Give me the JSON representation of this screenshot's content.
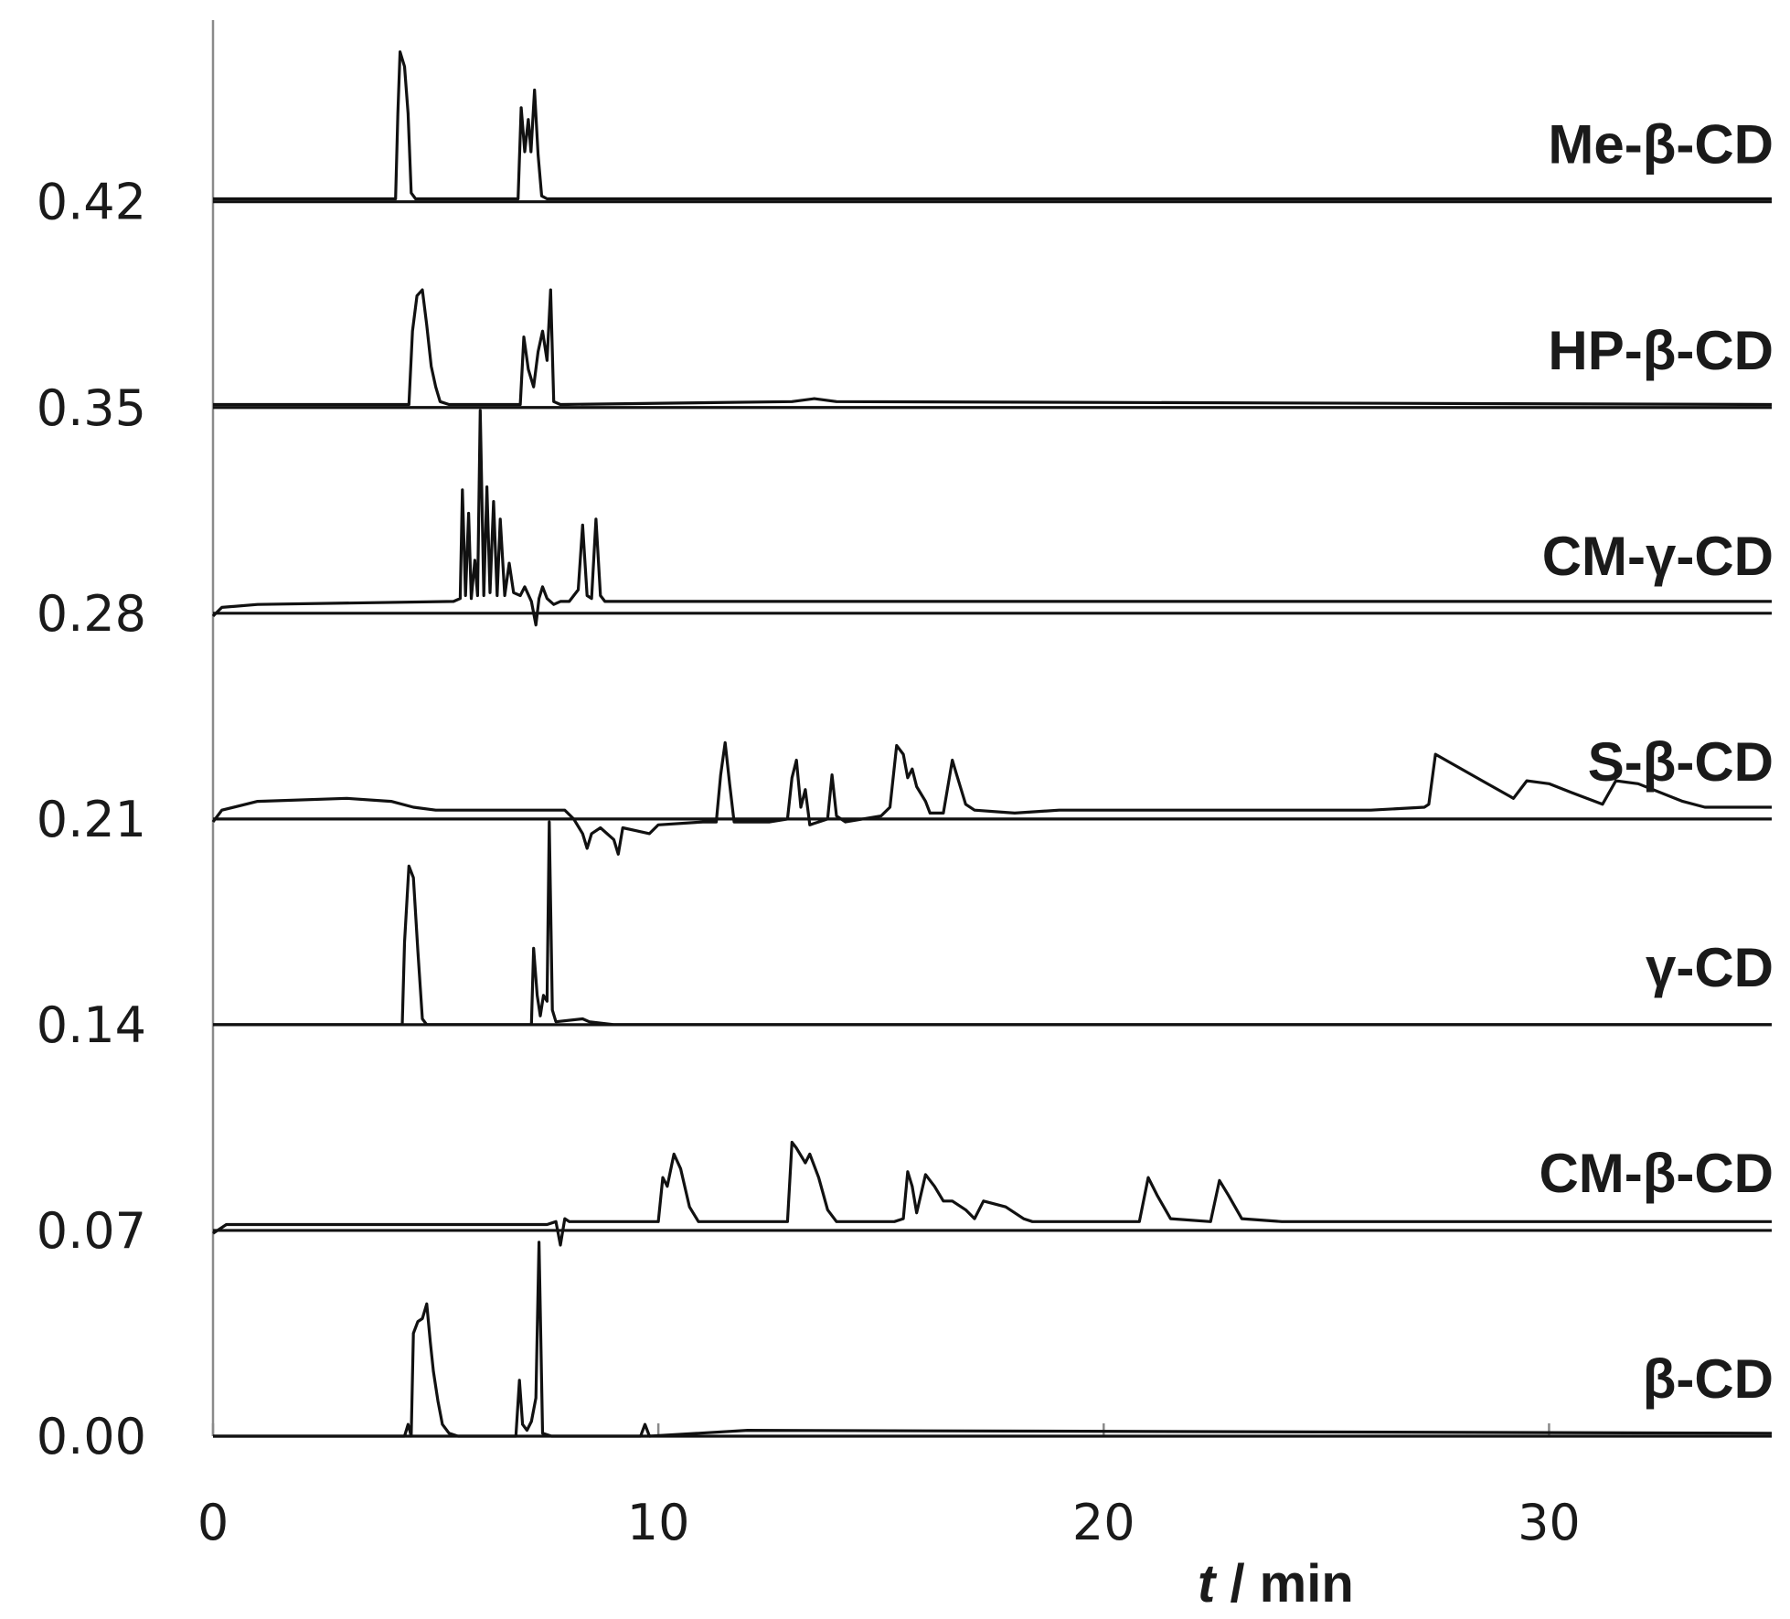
{
  "chart_data": {
    "type": "line",
    "layout": "stacked-offset",
    "xlabel_italic": "t",
    "xlabel_rest": " / min",
    "xlim": [
      0,
      35
    ],
    "xticks": [
      0,
      10,
      20,
      30
    ],
    "ylim": [
      0,
      0.476
    ],
    "yticks": [
      "0.00",
      "0.07",
      "0.14",
      "0.21",
      "0.28",
      "0.35",
      "0.42"
    ],
    "grid": false,
    "series": [
      {
        "name": "Me-β-CD",
        "baseline": 0.42,
        "points": [
          [
            0,
            0.421
          ],
          [
            4.1,
            0.421
          ],
          [
            4.15,
            0.45
          ],
          [
            4.2,
            0.471
          ],
          [
            4.3,
            0.466
          ],
          [
            4.38,
            0.45
          ],
          [
            4.45,
            0.423
          ],
          [
            4.55,
            0.421
          ],
          [
            6.85,
            0.421
          ],
          [
            6.92,
            0.452
          ],
          [
            7.0,
            0.437
          ],
          [
            7.08,
            0.448
          ],
          [
            7.14,
            0.437
          ],
          [
            7.22,
            0.458
          ],
          [
            7.3,
            0.436
          ],
          [
            7.38,
            0.422
          ],
          [
            7.5,
            0.421
          ],
          [
            13,
            0.421
          ],
          [
            35,
            0.421
          ]
        ]
      },
      {
        "name": "HP-β-CD",
        "baseline": 0.35,
        "points": [
          [
            0,
            0.351
          ],
          [
            4.4,
            0.351
          ],
          [
            4.48,
            0.376
          ],
          [
            4.58,
            0.388
          ],
          [
            4.7,
            0.39
          ],
          [
            4.8,
            0.378
          ],
          [
            4.9,
            0.364
          ],
          [
            5.0,
            0.357
          ],
          [
            5.1,
            0.352
          ],
          [
            5.3,
            0.351
          ],
          [
            6.9,
            0.351
          ],
          [
            6.98,
            0.374
          ],
          [
            7.08,
            0.363
          ],
          [
            7.2,
            0.357
          ],
          [
            7.3,
            0.369
          ],
          [
            7.4,
            0.376
          ],
          [
            7.5,
            0.366
          ],
          [
            7.58,
            0.39
          ],
          [
            7.65,
            0.352
          ],
          [
            7.8,
            0.351
          ],
          [
            13,
            0.352
          ],
          [
            13.5,
            0.353
          ],
          [
            14,
            0.352
          ],
          [
            35,
            0.351
          ]
        ]
      },
      {
        "name": "CM-γ-CD",
        "baseline": 0.28,
        "points": [
          [
            0,
            0.279
          ],
          [
            0.2,
            0.282
          ],
          [
            1,
            0.283
          ],
          [
            5.4,
            0.284
          ],
          [
            5.55,
            0.285
          ],
          [
            5.6,
            0.322
          ],
          [
            5.67,
            0.286
          ],
          [
            5.74,
            0.314
          ],
          [
            5.8,
            0.285
          ],
          [
            5.88,
            0.298
          ],
          [
            5.94,
            0.286
          ],
          [
            6.0,
            0.349
          ],
          [
            6.08,
            0.286
          ],
          [
            6.15,
            0.323
          ],
          [
            6.22,
            0.287
          ],
          [
            6.3,
            0.318
          ],
          [
            6.38,
            0.286
          ],
          [
            6.45,
            0.312
          ],
          [
            6.55,
            0.286
          ],
          [
            6.65,
            0.297
          ],
          [
            6.75,
            0.287
          ],
          [
            6.9,
            0.286
          ],
          [
            7.0,
            0.289
          ],
          [
            7.15,
            0.284
          ],
          [
            7.25,
            0.276
          ],
          [
            7.32,
            0.285
          ],
          [
            7.4,
            0.289
          ],
          [
            7.5,
            0.285
          ],
          [
            7.65,
            0.283
          ],
          [
            7.8,
            0.284
          ],
          [
            8.0,
            0.284
          ],
          [
            8.1,
            0.286
          ],
          [
            8.2,
            0.288
          ],
          [
            8.3,
            0.31
          ],
          [
            8.4,
            0.286
          ],
          [
            8.5,
            0.285
          ],
          [
            8.6,
            0.312
          ],
          [
            8.7,
            0.286
          ],
          [
            8.8,
            0.284
          ],
          [
            9,
            0.284
          ],
          [
            35,
            0.284
          ]
        ]
      },
      {
        "name": "S-β-CD",
        "baseline": 0.21,
        "points": [
          [
            0,
            0.209
          ],
          [
            0.2,
            0.213
          ],
          [
            1,
            0.216
          ],
          [
            3,
            0.217
          ],
          [
            4,
            0.216
          ],
          [
            4.5,
            0.214
          ],
          [
            5,
            0.213
          ],
          [
            7.9,
            0.213
          ],
          [
            8.1,
            0.21
          ],
          [
            8.3,
            0.205
          ],
          [
            8.4,
            0.2
          ],
          [
            8.5,
            0.205
          ],
          [
            8.7,
            0.207
          ],
          [
            9.0,
            0.203
          ],
          [
            9.1,
            0.198
          ],
          [
            9.2,
            0.207
          ],
          [
            9.5,
            0.206
          ],
          [
            9.8,
            0.205
          ],
          [
            10,
            0.208
          ],
          [
            11.0,
            0.209
          ],
          [
            11.3,
            0.209
          ],
          [
            11.4,
            0.225
          ],
          [
            11.5,
            0.236
          ],
          [
            11.6,
            0.222
          ],
          [
            11.7,
            0.209
          ],
          [
            12.5,
            0.209
          ],
          [
            12.9,
            0.21
          ],
          [
            13.0,
            0.224
          ],
          [
            13.1,
            0.23
          ],
          [
            13.2,
            0.214
          ],
          [
            13.3,
            0.22
          ],
          [
            13.4,
            0.208
          ],
          [
            13.6,
            0.209
          ],
          [
            13.8,
            0.21
          ],
          [
            13.9,
            0.225
          ],
          [
            14.0,
            0.211
          ],
          [
            14.2,
            0.209
          ],
          [
            15.0,
            0.211
          ],
          [
            15.2,
            0.214
          ],
          [
            15.35,
            0.235
          ],
          [
            15.5,
            0.232
          ],
          [
            15.6,
            0.224
          ],
          [
            15.7,
            0.227
          ],
          [
            15.8,
            0.221
          ],
          [
            16.0,
            0.216
          ],
          [
            16.1,
            0.212
          ],
          [
            16.4,
            0.212
          ],
          [
            16.5,
            0.221
          ],
          [
            16.6,
            0.23
          ],
          [
            16.7,
            0.225
          ],
          [
            16.8,
            0.22
          ],
          [
            16.9,
            0.215
          ],
          [
            17.1,
            0.213
          ],
          [
            18,
            0.212
          ],
          [
            19,
            0.213
          ],
          [
            22,
            0.213
          ],
          [
            26,
            0.213
          ],
          [
            27.2,
            0.214
          ],
          [
            27.3,
            0.215
          ],
          [
            27.45,
            0.232
          ],
          [
            28.5,
            0.223
          ],
          [
            29.2,
            0.217
          ],
          [
            29.5,
            0.223
          ],
          [
            30,
            0.222
          ],
          [
            30.5,
            0.219
          ],
          [
            31.2,
            0.215
          ],
          [
            31.5,
            0.223
          ],
          [
            32,
            0.222
          ],
          [
            33,
            0.216
          ],
          [
            33.5,
            0.214
          ],
          [
            35,
            0.214
          ]
        ]
      },
      {
        "name": "γ-CD",
        "baseline": 0.14,
        "points": [
          [
            0,
            0.14
          ],
          [
            4.25,
            0.14
          ],
          [
            4.3,
            0.168
          ],
          [
            4.4,
            0.194
          ],
          [
            4.5,
            0.19
          ],
          [
            4.6,
            0.165
          ],
          [
            4.7,
            0.142
          ],
          [
            4.8,
            0.14
          ],
          [
            7.15,
            0.14
          ],
          [
            7.2,
            0.166
          ],
          [
            7.28,
            0.15
          ],
          [
            7.35,
            0.143
          ],
          [
            7.42,
            0.15
          ],
          [
            7.5,
            0.148
          ],
          [
            7.55,
            0.209
          ],
          [
            7.62,
            0.145
          ],
          [
            7.7,
            0.141
          ],
          [
            8.3,
            0.142
          ],
          [
            8.45,
            0.141
          ],
          [
            9,
            0.14
          ],
          [
            35,
            0.14
          ]
        ]
      },
      {
        "name": "CM-β-CD",
        "baseline": 0.07,
        "points": [
          [
            0,
            0.069
          ],
          [
            0.3,
            0.072
          ],
          [
            1,
            0.072
          ],
          [
            7.5,
            0.072
          ],
          [
            7.7,
            0.073
          ],
          [
            7.8,
            0.065
          ],
          [
            7.9,
            0.074
          ],
          [
            8,
            0.073
          ],
          [
            10.0,
            0.073
          ],
          [
            10.1,
            0.088
          ],
          [
            10.2,
            0.085
          ],
          [
            10.35,
            0.096
          ],
          [
            10.5,
            0.091
          ],
          [
            10.7,
            0.078
          ],
          [
            10.9,
            0.073
          ],
          [
            12.9,
            0.073
          ],
          [
            13.0,
            0.1
          ],
          [
            13.1,
            0.098
          ],
          [
            13.3,
            0.093
          ],
          [
            13.4,
            0.096
          ],
          [
            13.6,
            0.088
          ],
          [
            13.8,
            0.077
          ],
          [
            14.0,
            0.073
          ],
          [
            15.3,
            0.073
          ],
          [
            15.5,
            0.074
          ],
          [
            15.6,
            0.09
          ],
          [
            15.7,
            0.085
          ],
          [
            15.8,
            0.076
          ],
          [
            16.0,
            0.089
          ],
          [
            16.2,
            0.085
          ],
          [
            16.4,
            0.08
          ],
          [
            16.6,
            0.08
          ],
          [
            16.9,
            0.077
          ],
          [
            17.1,
            0.074
          ],
          [
            17.3,
            0.08
          ],
          [
            17.8,
            0.078
          ],
          [
            18.2,
            0.074
          ],
          [
            18.4,
            0.073
          ],
          [
            20.5,
            0.073
          ],
          [
            20.8,
            0.073
          ],
          [
            21.0,
            0.088
          ],
          [
            21.2,
            0.082
          ],
          [
            21.5,
            0.074
          ],
          [
            22.4,
            0.073
          ],
          [
            22.6,
            0.087
          ],
          [
            22.8,
            0.082
          ],
          [
            23.1,
            0.074
          ],
          [
            24,
            0.073
          ],
          [
            35,
            0.073
          ]
        ]
      },
      {
        "name": "β-CD",
        "baseline": 0.0,
        "points": [
          [
            0,
            0.0
          ],
          [
            4.3,
            0.0
          ],
          [
            4.38,
            0.004
          ],
          [
            4.45,
            0.0
          ],
          [
            4.5,
            0.035
          ],
          [
            4.6,
            0.039
          ],
          [
            4.7,
            0.04
          ],
          [
            4.8,
            0.045
          ],
          [
            4.88,
            0.032
          ],
          [
            4.95,
            0.022
          ],
          [
            5.05,
            0.012
          ],
          [
            5.15,
            0.004
          ],
          [
            5.3,
            0.001
          ],
          [
            5.5,
            0.0
          ],
          [
            6.8,
            0.0
          ],
          [
            6.88,
            0.019
          ],
          [
            6.95,
            0.004
          ],
          [
            7.05,
            0.002
          ],
          [
            7.15,
            0.005
          ],
          [
            7.25,
            0.013
          ],
          [
            7.32,
            0.066
          ],
          [
            7.4,
            0.001
          ],
          [
            7.6,
            0.0
          ],
          [
            9.6,
            0.0
          ],
          [
            9.7,
            0.004
          ],
          [
            9.8,
            0.0
          ],
          [
            12,
            0.002
          ],
          [
            35,
            0.001
          ]
        ]
      }
    ]
  }
}
